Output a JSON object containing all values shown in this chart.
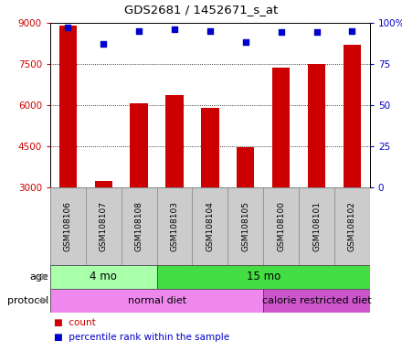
{
  "title": "GDS2681 / 1452671_s_at",
  "samples": [
    "GSM108106",
    "GSM108107",
    "GSM108108",
    "GSM108103",
    "GSM108104",
    "GSM108105",
    "GSM108100",
    "GSM108101",
    "GSM108102"
  ],
  "counts": [
    8900,
    3250,
    6050,
    6350,
    5900,
    4480,
    7350,
    7500,
    8200
  ],
  "percentile_ranks": [
    97,
    87,
    95,
    96,
    95,
    88,
    94,
    94,
    95
  ],
  "ylim_left": [
    3000,
    9000
  ],
  "ylim_right": [
    0,
    100
  ],
  "yticks_left": [
    3000,
    4500,
    6000,
    7500,
    9000
  ],
  "yticks_right": [
    0,
    25,
    50,
    75,
    100
  ],
  "left_tick_labels": [
    "3000",
    "4500",
    "6000",
    "7500",
    "9000"
  ],
  "right_tick_labels": [
    "0",
    "25",
    "50",
    "75",
    "100%"
  ],
  "bar_color": "#cc0000",
  "dot_color": "#0000cc",
  "bar_width": 0.5,
  "age_groups": [
    {
      "label": "4 mo",
      "start": 0,
      "end": 3,
      "color": "#aaffaa"
    },
    {
      "label": "15 mo",
      "start": 3,
      "end": 9,
      "color": "#44dd44"
    }
  ],
  "protocol_groups": [
    {
      "label": "normal diet",
      "start": 0,
      "end": 6,
      "color": "#ee88ee"
    },
    {
      "label": "calorie restricted diet",
      "start": 6,
      "end": 9,
      "color": "#cc55cc"
    }
  ],
  "legend_count_label": "count",
  "legend_pct_label": "percentile rank within the sample",
  "bar_color_red": "#cc0000",
  "dot_color_blue": "#0000cc"
}
